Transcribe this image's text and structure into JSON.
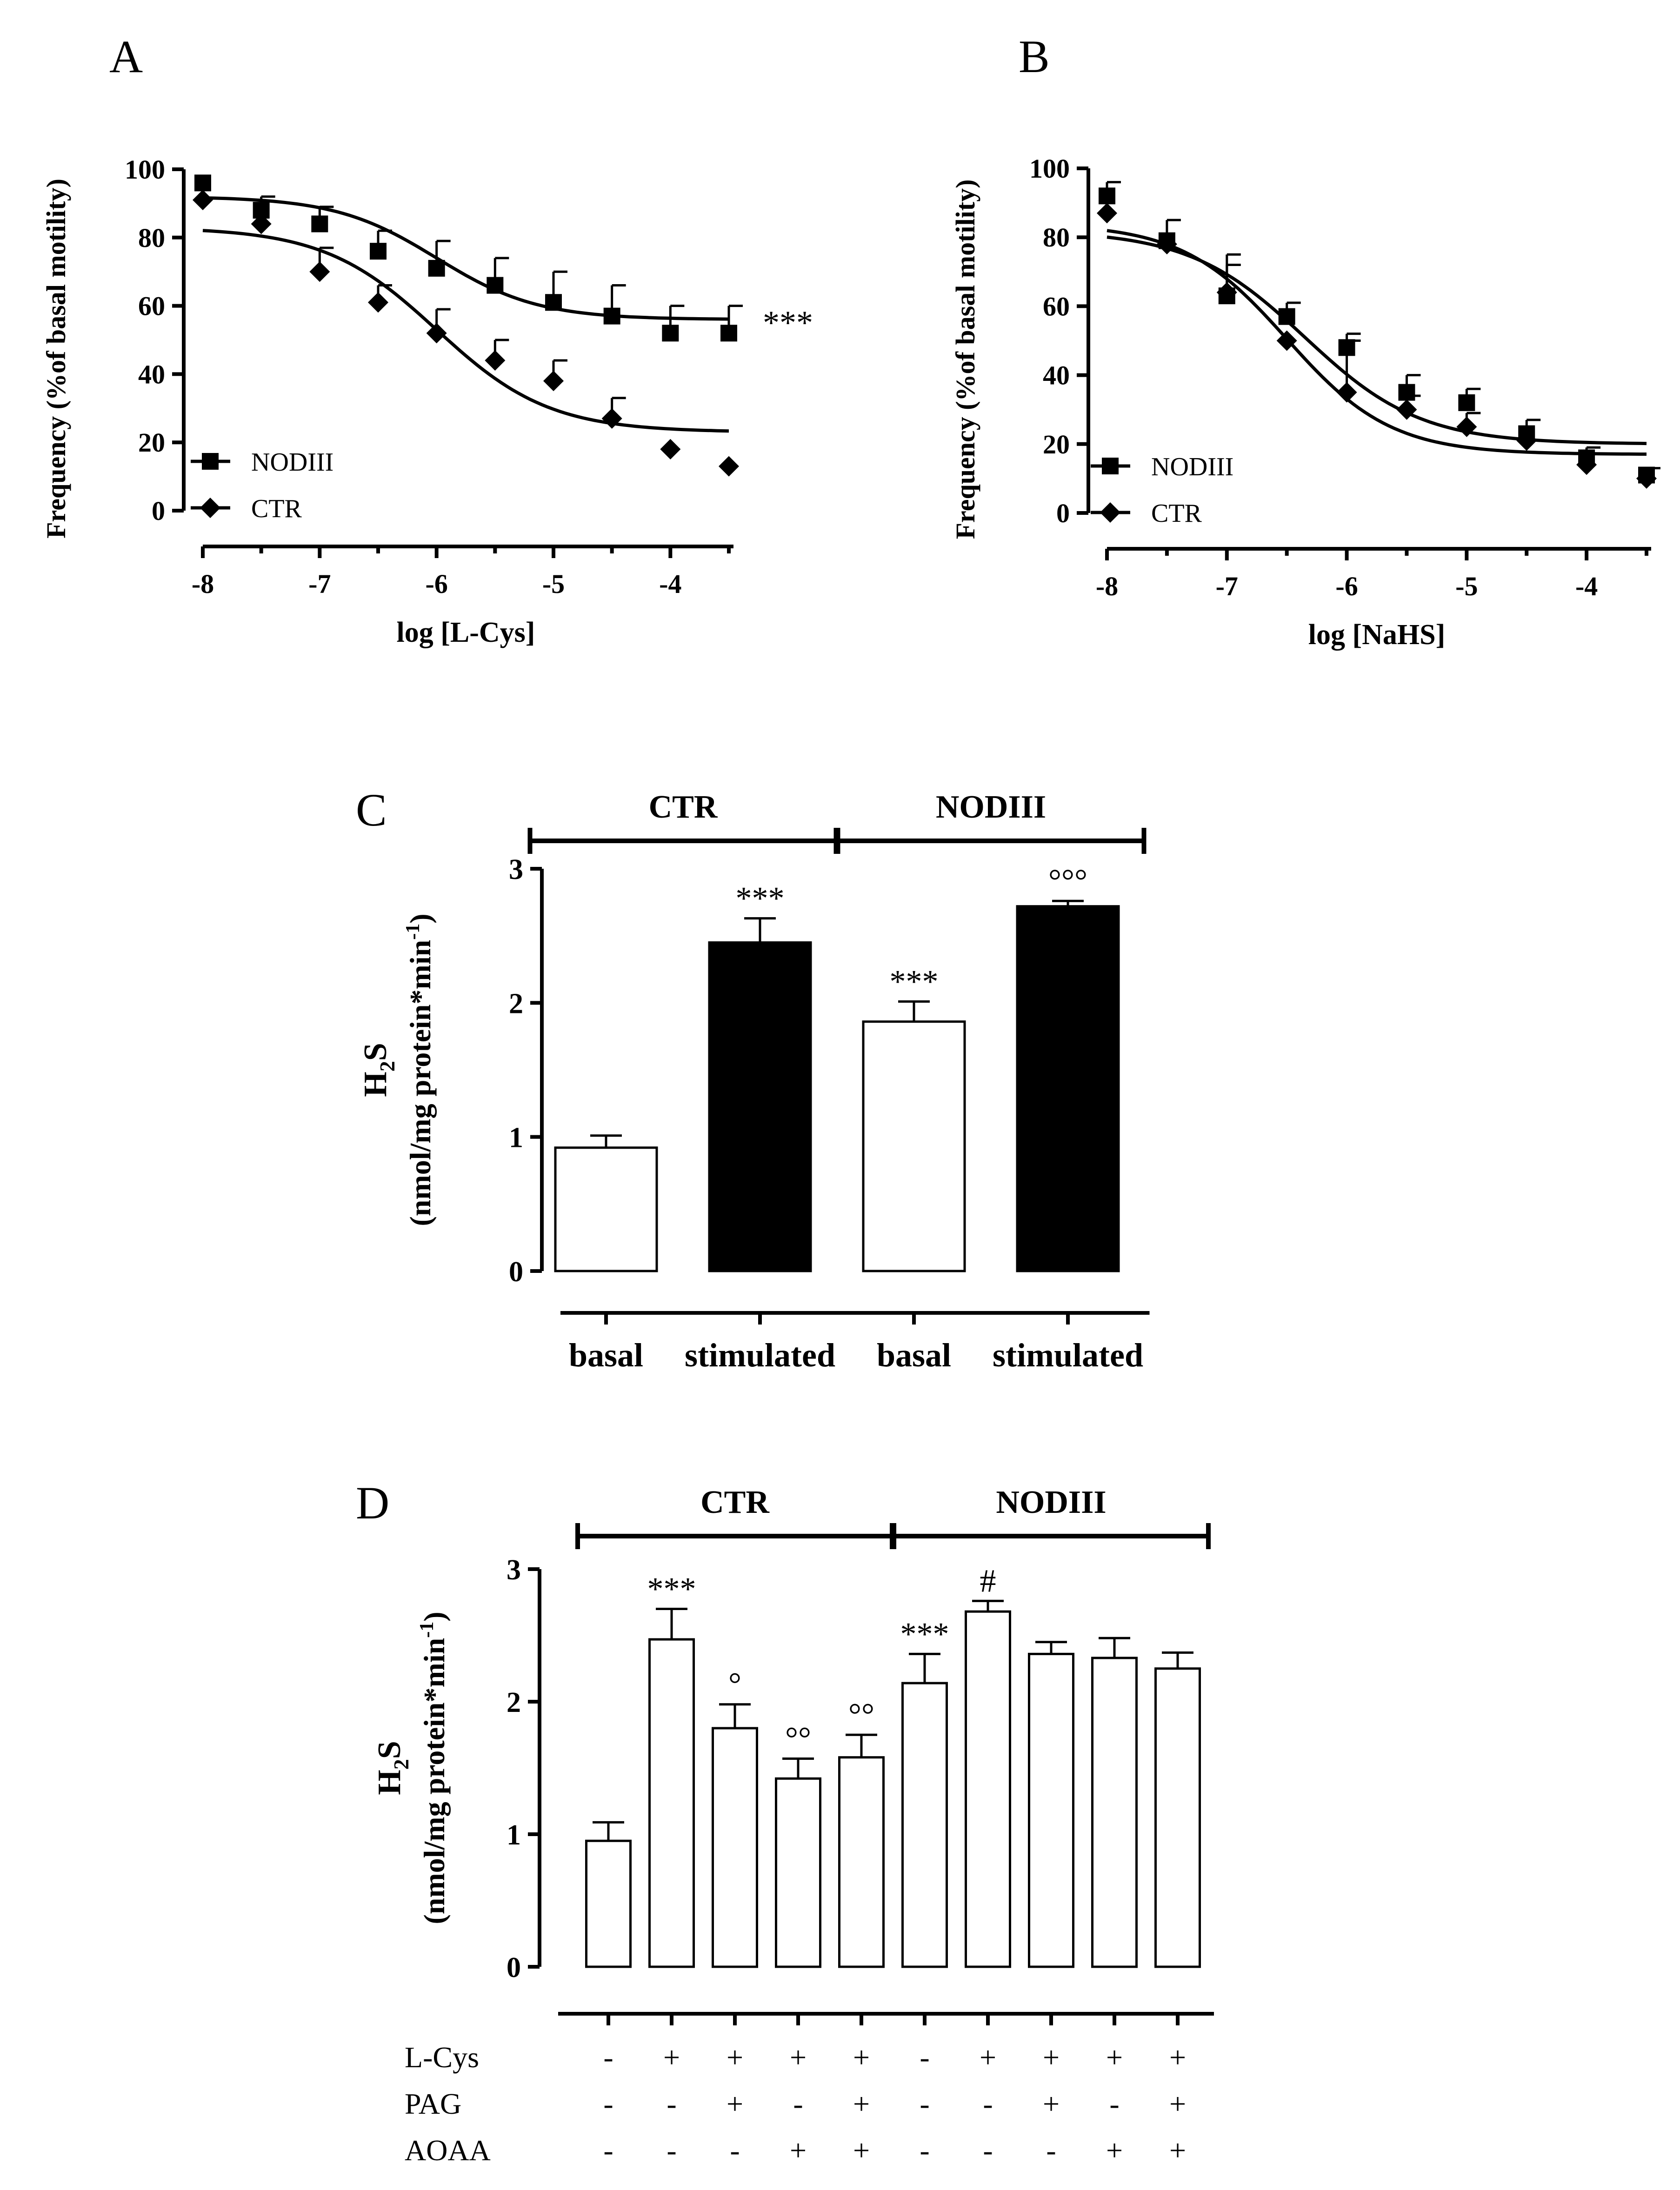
{
  "chart_data": [
    {
      "panel": "A",
      "type": "scatter",
      "xlabel": "log [L-Cys]",
      "ylabel": "Frequency (%of basal motility)",
      "xlim": [
        -8,
        -3.5
      ],
      "ylim": [
        0,
        100
      ],
      "xticks": [
        "-8",
        "-7",
        "-6",
        "-5",
        "-4"
      ],
      "yticks": [
        "0",
        "20",
        "40",
        "60",
        "80",
        "100"
      ],
      "legend": "bottom-left",
      "annotation": "***",
      "series": [
        {
          "name": "NODIII",
          "marker": "square",
          "x": [
            -8,
            -7.5,
            -7,
            -6.5,
            -6,
            -5.5,
            -5,
            -4.5,
            -4,
            -3.5
          ],
          "y": [
            96,
            88,
            84,
            76,
            71,
            66,
            61,
            57,
            52,
            52
          ],
          "err": [
            0,
            4,
            5,
            6,
            8,
            8,
            9,
            9,
            8,
            8
          ],
          "fit": {
            "bottom": 56,
            "top": 92,
            "logEC50": -6.0,
            "hill": 1.0
          }
        },
        {
          "name": "CTR",
          "marker": "diamond",
          "x": [
            -8,
            -7.5,
            -7,
            -6.5,
            -6,
            -5.5,
            -5,
            -4.5,
            -4,
            -3.5
          ],
          "y": [
            91,
            84,
            70,
            61,
            52,
            44,
            38,
            27,
            18,
            13
          ],
          "err": [
            0,
            0,
            7,
            5,
            7,
            6,
            6,
            6,
            0,
            0
          ],
          "fit": {
            "bottom": 23,
            "top": 83,
            "logEC50": -6.0,
            "hill": 0.9
          }
        }
      ]
    },
    {
      "panel": "B",
      "type": "scatter",
      "xlabel": "log [NaHS]",
      "ylabel": "Frequency (%of basal motility)",
      "xlim": [
        -8,
        -3.5
      ],
      "ylim": [
        0,
        100
      ],
      "xticks": [
        "-8",
        "-7",
        "-6",
        "-5",
        "-4"
      ],
      "yticks": [
        "0",
        "20",
        "40",
        "60",
        "80",
        "100"
      ],
      "legend": "bottom-left",
      "series": [
        {
          "name": "NODIII",
          "marker": "square",
          "x": [
            -8,
            -7.5,
            -7,
            -6.5,
            -6,
            -5.5,
            -5,
            -4.5,
            -4,
            -3.5
          ],
          "y": [
            92,
            79,
            63,
            57,
            48,
            35,
            32,
            23,
            16,
            11
          ],
          "err": [
            4,
            6,
            12,
            4,
            4,
            5,
            4,
            4,
            3,
            2
          ],
          "fit": {
            "bottom": 20,
            "top": 82,
            "logEC50": -6.35,
            "hill": 0.9
          }
        },
        {
          "name": "CTR",
          "marker": "diamond",
          "x": [
            -8,
            -7.5,
            -7,
            -6.5,
            -6,
            -5.5,
            -5,
            -4.5,
            -4,
            -3.5
          ],
          "y": [
            87,
            78,
            64,
            50,
            35,
            30,
            25,
            21,
            14,
            10
          ],
          "err": [
            0,
            0,
            8,
            0,
            15,
            4,
            4,
            0,
            0,
            0
          ],
          "fit": {
            "bottom": 17,
            "top": 84,
            "logEC50": -6.5,
            "hill": 1.0
          }
        }
      ]
    },
    {
      "panel": "C",
      "type": "bar",
      "ylabel_main": "H",
      "ylabel_sub": "2",
      "ylabel_after": "S",
      "ylabel_units": "(nmol/mg protein*min",
      "ylabel_units_sup": "-1",
      "ylabel_units_close": ")",
      "ylim": [
        0,
        3
      ],
      "yticks": [
        "0",
        "1",
        "2",
        "3"
      ],
      "groups": [
        {
          "label": "CTR",
          "from": 0,
          "to": 1
        },
        {
          "label": "NODIII",
          "from": 2,
          "to": 3
        }
      ],
      "categories": [
        "basal",
        "stimulated",
        "basal",
        "stimulated"
      ],
      "values": [
        0.92,
        2.45,
        1.86,
        2.72
      ],
      "errors": [
        0.09,
        0.18,
        0.15,
        0.04
      ],
      "fills": [
        "white",
        "black",
        "white",
        "black"
      ],
      "annotations": [
        "",
        "***",
        "***",
        "°°°"
      ]
    },
    {
      "panel": "D",
      "type": "bar",
      "ylabel_main": "H",
      "ylabel_sub": "2",
      "ylabel_after": "S",
      "ylabel_units": "(nmol/mg protein*min",
      "ylabel_units_sup": "-1",
      "ylabel_units_close": ")",
      "ylim": [
        0,
        3
      ],
      "yticks": [
        "0",
        "1",
        "2",
        "3"
      ],
      "groups": [
        {
          "label": "CTR",
          "from": 0,
          "to": 4
        },
        {
          "label": "NODIII",
          "from": 5,
          "to": 9
        }
      ],
      "values": [
        0.95,
        2.47,
        1.8,
        1.42,
        1.58,
        2.14,
        2.68,
        2.36,
        2.33,
        2.25
      ],
      "errors": [
        0.14,
        0.23,
        0.18,
        0.15,
        0.17,
        0.22,
        0.08,
        0.09,
        0.15,
        0.12
      ],
      "annotations": [
        "",
        "***",
        "°",
        "°°",
        "°°",
        "***",
        "#",
        "",
        "",
        ""
      ],
      "treatment_table": [
        {
          "label": "L-Cys",
          "marks": [
            "-",
            "+",
            "+",
            "+",
            "+",
            "-",
            "+",
            "+",
            "+",
            "+"
          ]
        },
        {
          "label": "PAG",
          "marks": [
            "-",
            "-",
            "+",
            "-",
            "+",
            "-",
            "-",
            "+",
            "-",
            "+"
          ]
        },
        {
          "label": "AOAA",
          "marks": [
            "-",
            "-",
            "-",
            "+",
            "+",
            "-",
            "-",
            "-",
            "+",
            "+"
          ]
        }
      ]
    }
  ]
}
